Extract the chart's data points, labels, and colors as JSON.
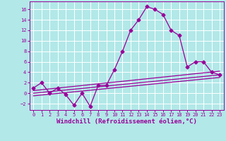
{
  "xlabel": "Windchill (Refroidissement éolien,°C)",
  "background_color": "#b2e8e8",
  "grid_color": "#ffffff",
  "line_color": "#990099",
  "x_ticks": [
    0,
    1,
    2,
    3,
    4,
    5,
    6,
    7,
    8,
    9,
    10,
    11,
    12,
    13,
    14,
    15,
    16,
    17,
    18,
    19,
    20,
    21,
    22,
    23
  ],
  "y_ticks": [
    -2,
    0,
    2,
    4,
    6,
    8,
    10,
    12,
    14,
    16
  ],
  "ylim": [
    -3.2,
    17.5
  ],
  "xlim": [
    -0.5,
    23.5
  ],
  "series1_x": [
    0,
    1,
    2,
    3,
    4,
    5,
    6,
    7,
    8,
    9,
    10,
    11,
    12,
    13,
    14,
    15,
    16,
    17,
    18,
    19,
    20,
    21,
    22,
    23
  ],
  "series1_y": [
    1,
    2,
    0,
    1,
    -0.3,
    -2.3,
    0,
    -2.5,
    1.5,
    1.5,
    4.5,
    8,
    12,
    14,
    16.5,
    16,
    15,
    12,
    11,
    5,
    6,
    6,
    4,
    3.5
  ],
  "series2_x": [
    0,
    23
  ],
  "series2_y": [
    0.5,
    4.2
  ],
  "series3_x": [
    0,
    23
  ],
  "series3_y": [
    0.0,
    3.5
  ],
  "series4_x": [
    0,
    23
  ],
  "series4_y": [
    -0.5,
    3.0
  ],
  "marker": "D",
  "marker_size": 2.5,
  "line_width": 0.9,
  "tick_fontsize": 5,
  "label_fontsize": 6.5
}
